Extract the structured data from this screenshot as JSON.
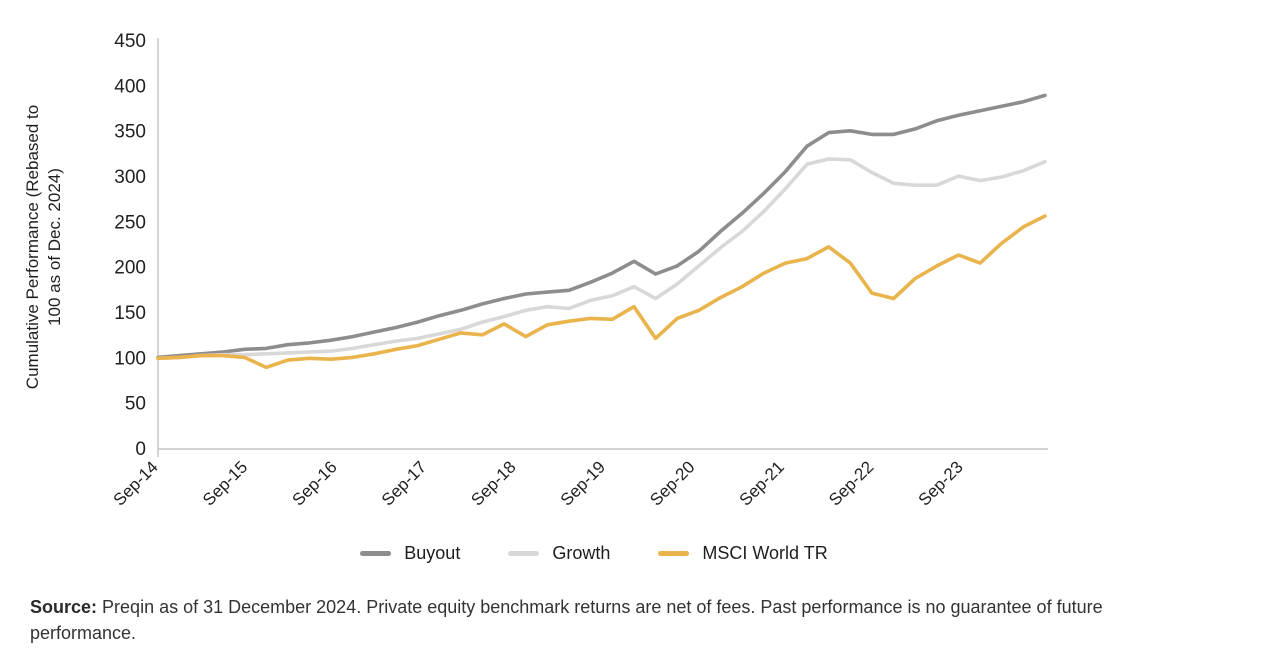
{
  "chart_data": {
    "type": "line",
    "title": "",
    "xlabel": "",
    "ylabel": "Cumulative Performance (Rebased to 100 as of Dec. 2024)",
    "ylabel_lines": [
      "Cumulative Performance (Rebased to",
      "100 as of Dec. 2024)"
    ],
    "ylim": [
      0,
      450
    ],
    "ytick_step": 50,
    "ytick_labels": [
      "450",
      "400",
      "350",
      "300",
      "250",
      "200",
      "150",
      "100",
      "50",
      "0"
    ],
    "xtick_labels": [
      "Sep-14",
      "Sep-15",
      "Sep-16",
      "Sep-17",
      "Sep-18",
      "Sep-19",
      "Sep-20",
      "Sep-21",
      "Sep-22",
      "Sep-23"
    ],
    "grid": false,
    "legend_position": "bottom",
    "categories": [
      "Sep-14",
      "Dec-14",
      "Mar-15",
      "Jun-15",
      "Sep-15",
      "Dec-15",
      "Mar-16",
      "Jun-16",
      "Sep-16",
      "Dec-16",
      "Mar-17",
      "Jun-17",
      "Sep-17",
      "Dec-17",
      "Mar-18",
      "Jun-18",
      "Sep-18",
      "Dec-18",
      "Mar-19",
      "Jun-19",
      "Sep-19",
      "Dec-19",
      "Mar-20",
      "Jun-20",
      "Sep-20",
      "Dec-20",
      "Mar-21",
      "Jun-21",
      "Sep-21",
      "Dec-21",
      "Mar-22",
      "Jun-22",
      "Sep-22",
      "Dec-22",
      "Mar-23",
      "Jun-23",
      "Sep-23",
      "Dec-23",
      "Mar-24",
      "Jun-24",
      "Sep-24",
      "Dec-24"
    ],
    "series": [
      {
        "name": "Buyout",
        "color": "#8d8d8d",
        "values": [
          101,
          103,
          105,
          107,
          110,
          111,
          115,
          117,
          120,
          124,
          129,
          134,
          140,
          147,
          153,
          160,
          166,
          171,
          173,
          175,
          184,
          194,
          207,
          193,
          202,
          218,
          240,
          260,
          282,
          306,
          334,
          349,
          351,
          347,
          347,
          353,
          362,
          368,
          373,
          378,
          383,
          390
        ]
      },
      {
        "name": "Growth",
        "color": "#d8d8d8",
        "values": [
          100,
          101,
          103,
          104,
          104,
          105,
          106,
          107,
          108,
          111,
          115,
          119,
          122,
          127,
          132,
          140,
          146,
          153,
          157,
          155,
          164,
          169,
          179,
          166,
          182,
          202,
          222,
          240,
          262,
          287,
          314,
          320,
          319,
          305,
          293,
          291,
          291,
          301,
          296,
          300,
          307,
          317
        ]
      },
      {
        "name": "MSCI World TR",
        "color": "#e9b44c",
        "values": [
          100,
          101,
          103,
          103,
          101,
          90,
          98,
          100,
          99,
          101,
          105,
          110,
          114,
          121,
          128,
          126,
          138,
          124,
          137,
          141,
          144,
          143,
          157,
          122,
          144,
          153,
          167,
          179,
          194,
          205,
          210,
          223,
          205,
          172,
          166,
          188,
          202,
          214,
          205,
          227,
          245,
          257
        ]
      }
    ]
  },
  "source": {
    "label": "Source:",
    "text": "Preqin as of 31 December 2024. Private equity benchmark returns are net of fees. Past performance is no guarantee of future performance."
  }
}
